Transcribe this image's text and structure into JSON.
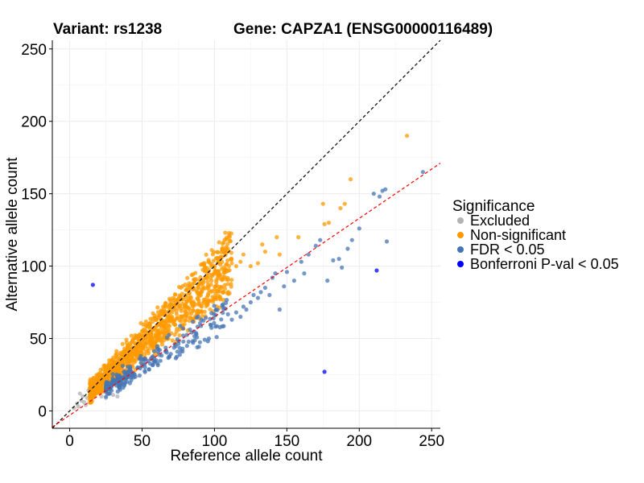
{
  "chart_data": {
    "type": "scatter",
    "title_left": "Variant: rs1238",
    "title_right": "Gene: CAPZA1 (ENSG00000116489)",
    "xlabel": "Reference allele count",
    "ylabel": "Alternative allele count",
    "xlim": [
      -12,
      256
    ],
    "ylim": [
      -12,
      256
    ],
    "xticks": [
      0,
      50,
      100,
      150,
      200,
      250
    ],
    "yticks": [
      0,
      50,
      100,
      150,
      200,
      250
    ],
    "grid": true,
    "legend": {
      "title": "Significance",
      "position": "right",
      "entries": [
        {
          "label": "Excluded",
          "color": "#b3b3b3"
        },
        {
          "label": "Non-significant",
          "color": "#ff9900"
        },
        {
          "label": "FDR < 0.05",
          "color": "#4575b4"
        },
        {
          "label": "Bonferroni P-val < 0.05",
          "color": "#0000ff"
        }
      ]
    },
    "reference_lines": [
      {
        "name": "identity",
        "slope": 1.0,
        "intercept": 0,
        "color": "#000000",
        "style": "dashed"
      },
      {
        "name": "fit",
        "slope": 0.68,
        "intercept": -3,
        "color": "#ff0000",
        "style": "dashed"
      }
    ],
    "series": [
      {
        "name": "Excluded",
        "color": "#b3b3b3",
        "x": [
          3,
          5,
          6,
          8,
          9,
          10,
          12,
          13,
          14,
          15,
          16,
          18,
          20,
          22,
          24,
          26,
          28,
          30,
          7,
          11,
          17,
          19,
          25,
          33
        ],
        "y": [
          2,
          5,
          3,
          7,
          10,
          6,
          9,
          14,
          11,
          8,
          13,
          12,
          15,
          10,
          13,
          16,
          12,
          11,
          12,
          4,
          18,
          16,
          9,
          10
        ]
      },
      {
        "name": "Non-significant",
        "color": "#ff9900",
        "generated": {
          "count": 1100,
          "x_range": [
            14,
            112
          ],
          "ratio_range": [
            0.72,
            1.12
          ],
          "noise": 6
        },
        "x": [
          18,
          22,
          25,
          28,
          30,
          33,
          35,
          38,
          40,
          42,
          45,
          48,
          50,
          52,
          55,
          58,
          60,
          62,
          65,
          68,
          70,
          72,
          75,
          78,
          80,
          82,
          85,
          88,
          90,
          92,
          95,
          98,
          100,
          103,
          105,
          108,
          110,
          112,
          115,
          118,
          120,
          125,
          130,
          133,
          135,
          143,
          145,
          158,
          175,
          176,
          179,
          187,
          190,
          194,
          233
        ],
        "y": [
          20,
          23,
          30,
          27,
          35,
          33,
          40,
          37,
          45,
          42,
          50,
          47,
          55,
          52,
          60,
          57,
          63,
          60,
          68,
          65,
          72,
          70,
          77,
          74,
          80,
          78,
          84,
          82,
          88,
          86,
          92,
          90,
          95,
          93,
          98,
          96,
          100,
          102,
          100,
          103,
          108,
          100,
          102,
          115,
          110,
          120,
          108,
          120,
          143,
          129,
          130,
          140,
          143,
          160,
          190
        ]
      },
      {
        "name": "FDR < 0.05",
        "color": "#4575b4",
        "generated": {
          "count": 260,
          "x_range": [
            25,
            110
          ],
          "ratio_range": [
            0.52,
            0.72
          ],
          "noise": 4
        },
        "x": [
          112,
          115,
          118,
          120,
          122,
          125,
          127,
          130,
          132,
          135,
          138,
          140,
          142,
          145,
          148,
          150,
          155,
          160,
          162,
          165,
          170,
          173,
          178,
          182,
          186,
          188,
          192,
          195,
          200,
          210,
          214,
          216,
          218,
          219,
          244
        ],
        "y": [
          63,
          68,
          65,
          72,
          70,
          75,
          80,
          78,
          82,
          85,
          80,
          92,
          95,
          70,
          86,
          96,
          90,
          103,
          95,
          108,
          114,
          118,
          90,
          104,
          105,
          99,
          112,
          118,
          126,
          150,
          148,
          152,
          153,
          117,
          165
        ]
      },
      {
        "name": "Bonferroni P-val < 0.05",
        "color": "#0000ff",
        "x": [
          16,
          176,
          212
        ],
        "y": [
          87,
          27,
          97
        ]
      }
    ]
  }
}
